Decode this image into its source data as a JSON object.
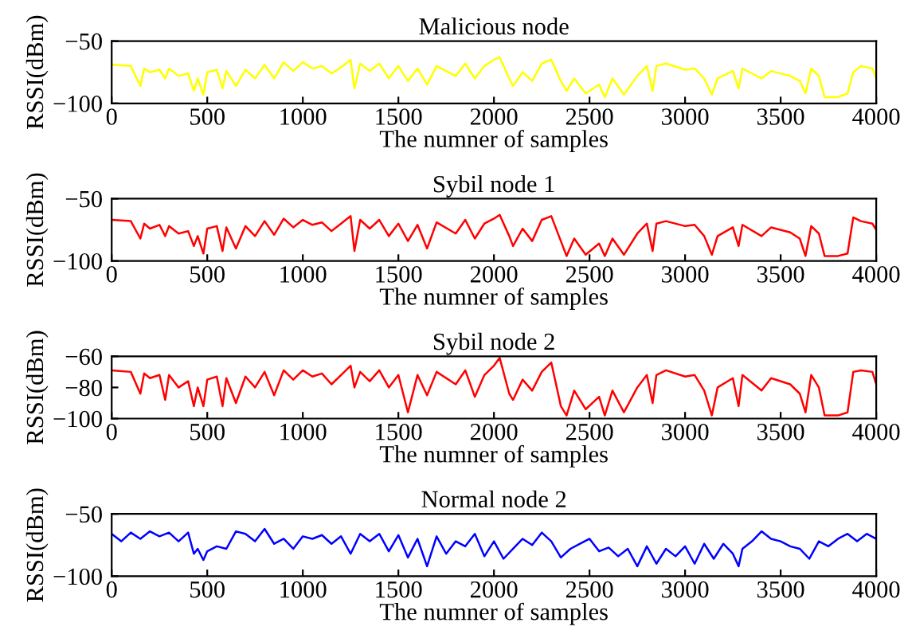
{
  "chart_data": [
    {
      "type": "line",
      "title": "Malicious node",
      "xlabel": "The numner of samples",
      "ylabel": "RSSI(dBm)",
      "xlim": [
        0,
        4000
      ],
      "xticks": [
        0,
        500,
        1000,
        1500,
        2000,
        2500,
        3000,
        3500,
        4000
      ],
      "ylim": [
        -100,
        -50
      ],
      "yticks": [
        -100,
        -50
      ],
      "grid": false,
      "series": [
        {
          "color": "#ffff00",
          "x": [
            0,
            100,
            150,
            170,
            200,
            250,
            280,
            300,
            350,
            400,
            430,
            450,
            480,
            500,
            550,
            580,
            600,
            650,
            700,
            750,
            800,
            850,
            900,
            950,
            1000,
            1050,
            1100,
            1150,
            1200,
            1250,
            1270,
            1300,
            1350,
            1400,
            1450,
            1500,
            1550,
            1600,
            1650,
            1700,
            1800,
            1850,
            1900,
            1950,
            2000,
            2030,
            2080,
            2100,
            2150,
            2200,
            2250,
            2300,
            2350,
            2380,
            2420,
            2480,
            2550,
            2580,
            2620,
            2680,
            2750,
            2800,
            2830,
            2850,
            2900,
            3000,
            3050,
            3100,
            3140,
            3170,
            3250,
            3280,
            3300,
            3400,
            3450,
            3550,
            3600,
            3630,
            3660,
            3700,
            3730,
            3800,
            3850,
            3880,
            3920,
            3980,
            4000
          ],
          "values": [
            -69,
            -70,
            -86,
            -72,
            -75,
            -73,
            -80,
            -72,
            -78,
            -76,
            -90,
            -80,
            -93,
            -75,
            -73,
            -88,
            -74,
            -86,
            -73,
            -80,
            -69,
            -80,
            -67,
            -74,
            -67,
            -72,
            -70,
            -76,
            -71,
            -65,
            -88,
            -68,
            -74,
            -68,
            -80,
            -70,
            -82,
            -72,
            -85,
            -70,
            -78,
            -68,
            -80,
            -70,
            -65,
            -63,
            -80,
            -86,
            -75,
            -82,
            -68,
            -65,
            -82,
            -90,
            -80,
            -92,
            -85,
            -95,
            -80,
            -93,
            -78,
            -70,
            -90,
            -70,
            -68,
            -73,
            -72,
            -80,
            -93,
            -80,
            -74,
            -88,
            -72,
            -80,
            -74,
            -78,
            -82,
            -92,
            -72,
            -78,
            -95,
            -95,
            -92,
            -75,
            -70,
            -72,
            -80
          ]
        }
      ]
    },
    {
      "type": "line",
      "title": "Sybil node 1",
      "xlabel": "The numner of samples",
      "ylabel": "RSSI(dBm)",
      "xlim": [
        0,
        4000
      ],
      "xticks": [
        0,
        500,
        1000,
        1500,
        2000,
        2500,
        3000,
        3500,
        4000
      ],
      "ylim": [
        -100,
        -50
      ],
      "yticks": [
        -100,
        -50
      ],
      "grid": false,
      "series": [
        {
          "color": "#ff0000",
          "x": [
            0,
            100,
            150,
            170,
            200,
            250,
            280,
            300,
            350,
            400,
            430,
            450,
            480,
            500,
            550,
            580,
            600,
            650,
            700,
            750,
            800,
            850,
            900,
            950,
            1000,
            1050,
            1100,
            1150,
            1200,
            1250,
            1270,
            1300,
            1350,
            1400,
            1450,
            1500,
            1550,
            1600,
            1650,
            1700,
            1800,
            1850,
            1900,
            1950,
            2000,
            2030,
            2080,
            2100,
            2150,
            2200,
            2250,
            2300,
            2350,
            2380,
            2420,
            2480,
            2550,
            2580,
            2620,
            2680,
            2750,
            2800,
            2830,
            2850,
            2900,
            3000,
            3050,
            3100,
            3140,
            3170,
            3250,
            3280,
            3300,
            3400,
            3450,
            3550,
            3600,
            3630,
            3660,
            3700,
            3730,
            3800,
            3850,
            3880,
            3920,
            3980,
            4000
          ],
          "values": [
            -67,
            -68,
            -82,
            -70,
            -74,
            -71,
            -80,
            -72,
            -78,
            -76,
            -88,
            -80,
            -94,
            -74,
            -72,
            -92,
            -73,
            -90,
            -72,
            -80,
            -68,
            -79,
            -66,
            -73,
            -67,
            -71,
            -69,
            -76,
            -70,
            -64,
            -92,
            -67,
            -74,
            -67,
            -80,
            -70,
            -84,
            -71,
            -90,
            -69,
            -78,
            -67,
            -82,
            -70,
            -66,
            -63,
            -80,
            -88,
            -74,
            -84,
            -67,
            -64,
            -84,
            -96,
            -82,
            -95,
            -86,
            -96,
            -82,
            -95,
            -78,
            -70,
            -92,
            -70,
            -68,
            -72,
            -71,
            -80,
            -95,
            -80,
            -73,
            -88,
            -71,
            -80,
            -73,
            -77,
            -82,
            -96,
            -72,
            -78,
            -96,
            -96,
            -94,
            -65,
            -68,
            -70,
            -75
          ]
        }
      ]
    },
    {
      "type": "line",
      "title": "Sybil node 2",
      "xlabel": "The numner of samples",
      "ylabel": "RSSI(dBm)",
      "xlim": [
        0,
        4000
      ],
      "xticks": [
        0,
        500,
        1000,
        1500,
        2000,
        2500,
        3000,
        3500,
        4000
      ],
      "ylim": [
        -100,
        -60
      ],
      "yticks": [
        -100,
        -80,
        -60
      ],
      "grid": false,
      "series": [
        {
          "color": "#ff0000",
          "x": [
            0,
            100,
            150,
            170,
            200,
            250,
            280,
            300,
            350,
            400,
            430,
            450,
            480,
            500,
            550,
            580,
            600,
            650,
            700,
            750,
            800,
            850,
            900,
            950,
            1000,
            1050,
            1100,
            1150,
            1200,
            1250,
            1270,
            1300,
            1350,
            1400,
            1450,
            1500,
            1550,
            1600,
            1650,
            1700,
            1800,
            1850,
            1900,
            1950,
            2000,
            2030,
            2080,
            2100,
            2150,
            2200,
            2250,
            2300,
            2350,
            2380,
            2420,
            2480,
            2550,
            2580,
            2620,
            2680,
            2750,
            2800,
            2830,
            2850,
            2900,
            3000,
            3050,
            3100,
            3140,
            3170,
            3250,
            3280,
            3300,
            3400,
            3450,
            3550,
            3600,
            3630,
            3660,
            3700,
            3730,
            3800,
            3850,
            3880,
            3920,
            3980,
            4000
          ],
          "values": [
            -69,
            -70,
            -84,
            -71,
            -74,
            -72,
            -88,
            -72,
            -80,
            -76,
            -92,
            -80,
            -92,
            -75,
            -73,
            -92,
            -74,
            -90,
            -73,
            -80,
            -70,
            -85,
            -69,
            -75,
            -69,
            -73,
            -71,
            -78,
            -72,
            -66,
            -80,
            -70,
            -76,
            -69,
            -80,
            -72,
            -96,
            -72,
            -85,
            -70,
            -78,
            -69,
            -86,
            -72,
            -66,
            -61,
            -84,
            -88,
            -75,
            -82,
            -70,
            -64,
            -92,
            -98,
            -82,
            -94,
            -86,
            -98,
            -82,
            -96,
            -80,
            -72,
            -90,
            -72,
            -69,
            -73,
            -72,
            -82,
            -98,
            -80,
            -74,
            -92,
            -72,
            -82,
            -74,
            -78,
            -84,
            -96,
            -72,
            -80,
            -98,
            -98,
            -96,
            -70,
            -69,
            -70,
            -78
          ]
        }
      ]
    },
    {
      "type": "line",
      "title": "Normal node 2",
      "xlabel": "The numner of samples",
      "ylabel": "RSSI(dBm)",
      "xlim": [
        0,
        4000
      ],
      "xticks": [
        0,
        500,
        1000,
        1500,
        2000,
        2500,
        3000,
        3500,
        4000
      ],
      "ylim": [
        -100,
        -50
      ],
      "yticks": [
        -100,
        -50
      ],
      "grid": false,
      "series": [
        {
          "color": "#0000ff",
          "x": [
            0,
            50,
            100,
            150,
            200,
            250,
            300,
            350,
            400,
            430,
            450,
            480,
            500,
            550,
            600,
            650,
            700,
            750,
            800,
            850,
            900,
            950,
            1000,
            1050,
            1100,
            1150,
            1200,
            1250,
            1300,
            1350,
            1400,
            1450,
            1500,
            1550,
            1600,
            1650,
            1700,
            1750,
            1800,
            1850,
            1900,
            1950,
            2000,
            2050,
            2100,
            2150,
            2200,
            2250,
            2300,
            2350,
            2400,
            2450,
            2500,
            2550,
            2600,
            2650,
            2700,
            2750,
            2800,
            2850,
            2900,
            2950,
            3000,
            3050,
            3100,
            3150,
            3200,
            3250,
            3280,
            3300,
            3350,
            3400,
            3450,
            3500,
            3550,
            3600,
            3650,
            3700,
            3750,
            3800,
            3850,
            3900,
            3950,
            4000
          ],
          "values": [
            -66,
            -72,
            -65,
            -70,
            -64,
            -68,
            -65,
            -72,
            -65,
            -82,
            -78,
            -87,
            -80,
            -76,
            -78,
            -64,
            -66,
            -72,
            -62,
            -74,
            -70,
            -78,
            -68,
            -70,
            -67,
            -74,
            -68,
            -82,
            -66,
            -72,
            -66,
            -80,
            -67,
            -85,
            -70,
            -92,
            -68,
            -82,
            -72,
            -76,
            -66,
            -84,
            -72,
            -86,
            -78,
            -70,
            -75,
            -65,
            -72,
            -85,
            -78,
            -74,
            -70,
            -80,
            -77,
            -84,
            -78,
            -92,
            -76,
            -90,
            -78,
            -84,
            -76,
            -90,
            -74,
            -86,
            -74,
            -82,
            -92,
            -78,
            -72,
            -64,
            -70,
            -72,
            -76,
            -78,
            -86,
            -72,
            -76,
            -70,
            -66,
            -72,
            -66,
            -70
          ]
        }
      ]
    }
  ]
}
